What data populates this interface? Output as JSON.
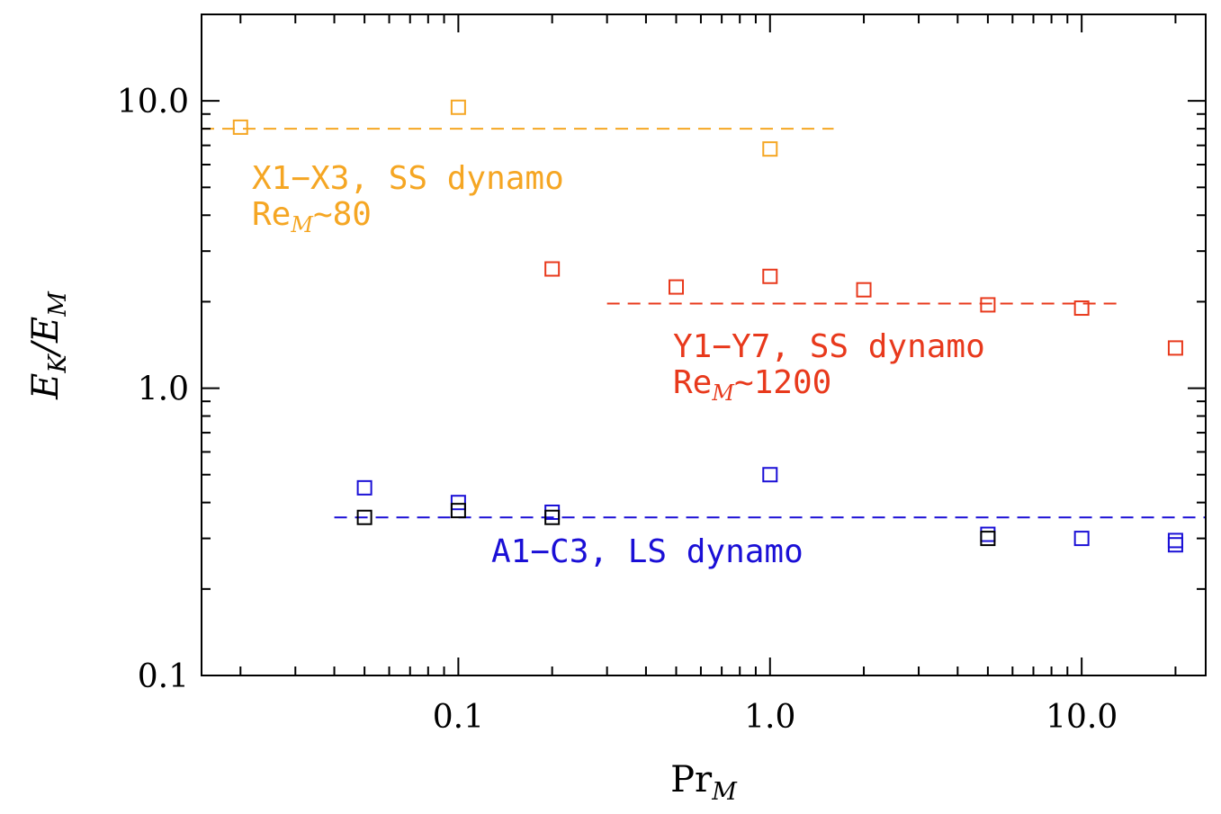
{
  "chart_data": {
    "type": "scatter",
    "xlabel": {
      "main": "Pr",
      "sub": "M"
    },
    "ylabel": {
      "main": "E",
      "sub1": "K",
      "mid": "/E",
      "sub2": "M"
    },
    "x_scale": "log",
    "y_scale": "log",
    "xlim": [
      0.015,
      25
    ],
    "ylim": [
      0.1,
      20
    ],
    "x_ticks": [
      {
        "value": 0.1,
        "label": "0.1"
      },
      {
        "value": 1,
        "label": "1.0"
      },
      {
        "value": 10,
        "label": "10.0"
      }
    ],
    "y_ticks": [
      {
        "value": 0.1,
        "label": "0.1"
      },
      {
        "value": 1,
        "label": "1.0"
      },
      {
        "value": 10,
        "label": "10.0"
      }
    ],
    "grid": false,
    "series": [
      {
        "color": "#f5a623",
        "marker": "square",
        "points": [
          [
            0.02,
            8.1
          ],
          [
            0.1,
            9.5
          ],
          [
            1.0,
            6.8
          ]
        ],
        "reference_line": {
          "y": 8.0,
          "x_from": 0.015,
          "x_to": 1.6
        }
      },
      {
        "color": "#e8391c",
        "marker": "square",
        "points": [
          [
            0.2,
            2.6
          ],
          [
            0.5,
            2.25
          ],
          [
            1.0,
            2.45
          ],
          [
            2.0,
            2.2
          ],
          [
            5.0,
            1.95
          ],
          [
            10.0,
            1.9
          ],
          [
            20.0,
            1.38
          ]
        ],
        "reference_line": {
          "y": 1.97,
          "x_from": 0.3,
          "x_to": 13
        }
      },
      {
        "color": "#1a0fd6",
        "marker": "square",
        "points": [
          [
            0.05,
            0.45
          ],
          [
            0.1,
            0.4
          ],
          [
            0.2,
            0.37
          ],
          [
            1.0,
            0.5
          ],
          [
            5.0,
            0.31
          ],
          [
            10.0,
            0.3
          ],
          [
            20.0,
            0.295
          ],
          [
            20.0,
            0.285
          ]
        ],
        "reference_line": {
          "y": 0.355,
          "x_from": 0.04,
          "x_to": 25
        }
      },
      {
        "color": "#000000",
        "marker": "square",
        "points": [
          [
            0.05,
            0.355
          ],
          [
            0.1,
            0.375
          ],
          [
            0.2,
            0.355
          ],
          [
            5.0,
            0.3
          ]
        ]
      }
    ],
    "annotations": [
      {
        "color": "#f5a623",
        "line1": "X1−X3, SS dynamo",
        "line2_main": "Re",
        "line2_sub": "M",
        "line2_tail": "~80"
      },
      {
        "color": "#e8391c",
        "line1": "Y1−Y7, SS dynamo",
        "line2_main": "Re",
        "line2_sub": "M",
        "line2_tail": "~1200"
      },
      {
        "color": "#1a0fd6",
        "line1": "A1−C3, LS dynamo"
      }
    ]
  }
}
